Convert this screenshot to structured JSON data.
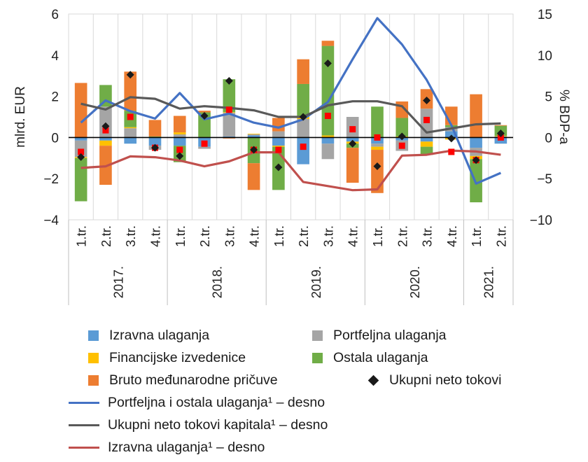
{
  "chart_data": {
    "type": "bar",
    "ylabel_left": "mlrd. EUR",
    "ylabel_right": "% BDP-a",
    "ylim_left": [
      -4,
      6
    ],
    "ylim_right": [
      -10,
      15
    ],
    "yticks_left": [
      "−4",
      "−2",
      "0",
      "2",
      "4",
      "6"
    ],
    "yticks_right": [
      "−10",
      "−5",
      "0",
      "5",
      "10",
      "15"
    ],
    "quarters": [
      "1.tr.",
      "2.tr.",
      "3.tr.",
      "4.tr.",
      "1.tr.",
      "2.tr.",
      "3.tr.",
      "4.tr.",
      "1.tr.",
      "2.tr.",
      "3.tr.",
      "4.tr.",
      "1.tr.",
      "2.tr.",
      "3.tr.",
      "4.tr.",
      "1.tr.",
      "2.tr."
    ],
    "years": [
      {
        "label": "2017.",
        "span": 4
      },
      {
        "label": "2018.",
        "span": 4
      },
      {
        "label": "2019.",
        "span": 4
      },
      {
        "label": "2020.",
        "span": 4
      },
      {
        "label": "2021.",
        "span": 2
      }
    ],
    "bar_series": [
      {
        "name": "Izravna ulaganja",
        "color": "#5b9bd5",
        "values": [
          -0.15,
          -0.15,
          -0.3,
          -0.4,
          -0.4,
          -0.45,
          0.05,
          0.1,
          -0.4,
          -1.3,
          -0.3,
          -0.2,
          -0.3,
          -0.15,
          -0.2,
          0.3,
          -0.5,
          -0.3
        ]
      },
      {
        "name": "Portfeljna ulaganja",
        "color": "#a5a5a5",
        "values": [
          -0.8,
          1.5,
          0.45,
          -0.2,
          0.15,
          -0.1,
          1.15,
          0.05,
          0.3,
          0.9,
          -0.75,
          1.0,
          -0.15,
          -0.5,
          1.4,
          0.2,
          -0.4,
          0.05
        ]
      },
      {
        "name": "Financijske izvedenice",
        "color": "#ffc000",
        "values": [
          -0.05,
          -0.25,
          0.05,
          0.02,
          0.1,
          0.02,
          0.03,
          0.03,
          -0.05,
          0.1,
          0.1,
          -0.1,
          -0.15,
          0.05,
          -0.25,
          -0.1,
          -0.15,
          0.02
        ]
      },
      {
        "name": "Ostala ulaganja",
        "color": "#70ad47",
        "values": [
          -2.1,
          1.05,
          0.8,
          0.03,
          -0.8,
          1.2,
          1.6,
          -1.25,
          -2.1,
          1.6,
          4.35,
          -0.2,
          1.5,
          0.9,
          -0.4,
          0.1,
          -2.1,
          0.5
        ]
      },
      {
        "name": "Bruto međunarodne pričuve",
        "color": "#ed7d31",
        "values": [
          2.65,
          -1.9,
          1.9,
          0.8,
          0.8,
          0.08,
          -0.05,
          -1.3,
          0.65,
          1.2,
          0.25,
          -1.7,
          -2.1,
          0.8,
          0.95,
          0.9,
          2.1,
          0.03
        ]
      }
    ],
    "diamonds": {
      "name": "Ukupni neto tokovi",
      "color": "#1a1a1a",
      "values": [
        -0.95,
        0.55,
        3.05,
        -0.5,
        -0.9,
        1.05,
        2.75,
        -0.6,
        -1.45,
        1.0,
        3.6,
        -0.3,
        -1.4,
        0.05,
        1.8,
        -0.05,
        -1.1,
        0.2
      ]
    },
    "red_markers": {
      "color": "#ff0000",
      "values": [
        -0.7,
        0.35,
        1.0,
        -0.5,
        -0.6,
        -0.3,
        1.35,
        -0.6,
        -0.6,
        -0.45,
        1.05,
        0.4,
        0.0,
        -0.4,
        0.85,
        -0.7,
        -1.1,
        0.0
      ]
    },
    "line_series": [
      {
        "name": "Portfeljna i ostala ulaganja¹ – desno",
        "color": "#4472c4",
        "values": [
          1.8,
          4.5,
          3.2,
          2.3,
          5.4,
          2.2,
          2.9,
          1.8,
          1.2,
          2.2,
          4.3,
          9.5,
          14.5,
          11.3,
          7.0,
          1.5,
          -5.6,
          -4.3
        ]
      },
      {
        "name": "Ukupni neto tokovi kapitala¹ – desno",
        "color": "#595959",
        "values": [
          4.1,
          3.4,
          4.9,
          4.7,
          3.5,
          3.8,
          3.6,
          3.3,
          2.5,
          2.5,
          3.9,
          4.4,
          4.4,
          3.8,
          0.6,
          1.1,
          1.6,
          1.7
        ]
      },
      {
        "name": "Izravna ulaganja¹ – desno",
        "color": "#c0504d",
        "values": [
          -3.7,
          -3.5,
          -2.3,
          -2.4,
          -2.8,
          -3.5,
          -2.9,
          -1.8,
          -1.8,
          -5.4,
          -5.9,
          -6.4,
          -6.3,
          -2.2,
          -2.1,
          -1.6,
          -1.7,
          -2.1
        ]
      }
    ],
    "legend_labels": {
      "izravna": "Izravna ulaganja",
      "portfeljna": "Portfeljna ulaganja",
      "financijske": "Financijske izvedenice",
      "ostala": "Ostala ulaganja",
      "pricuve": "Bruto međunarodne pričuve",
      "ukupni": "Ukupni neto tokovi",
      "line_portfeljna": "Portfeljna i ostala ulaganja¹ – desno",
      "line_ukupni": "Ukupni neto tokovi kapitala¹ – desno",
      "line_izravna": "Izravna ulaganja¹ – desno"
    },
    "legend_colors": {
      "izravna": "#5b9bd5",
      "portfeljna": "#a5a5a5",
      "financijske": "#ffc000",
      "ostala": "#70ad47",
      "pricuve": "#ed7d31",
      "ukupni": "#1a1a1a",
      "line_portfeljna": "#4472c4",
      "line_ukupni": "#595959",
      "line_izravna": "#c0504d"
    },
    "legend_placement": "bottom",
    "grid": "vertical"
  }
}
